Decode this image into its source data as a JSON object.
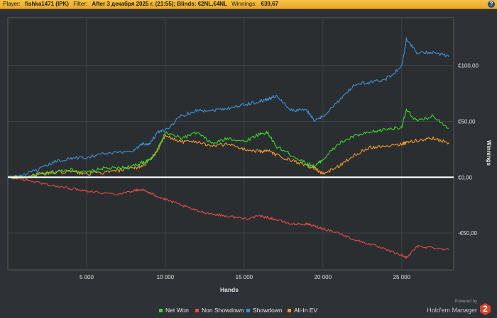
{
  "header": {
    "player_label": "Player:",
    "player_value": "fishka1471 (IPK)",
    "filter_label": "Filter:",
    "filter_value": "After 3 декабря 2025 г. (21:55); Blinds: €2NL,€4NL",
    "winnings_label": "Winnings:",
    "winnings_value": "€39,67",
    "help_glyph": "?"
  },
  "branding": {
    "powered_by": "Powered by",
    "name": "Hold'em Manager",
    "version": "2"
  },
  "chart_data": {
    "type": "line",
    "xlabel": "Hands",
    "ylabel": "Winnings",
    "xlim": [
      0,
      28300
    ],
    "ylim": [
      -83,
      143
    ],
    "x_ticks": [
      5000,
      10000,
      15000,
      20000,
      25000
    ],
    "x_tick_labels": [
      "5 000",
      "10 000",
      "15 000",
      "20 000",
      "25 000"
    ],
    "y_ticks": [
      100,
      50,
      0,
      -50
    ],
    "y_tick_labels": [
      "€100,00",
      "€50,00",
      "€0,00",
      "-€50,00"
    ],
    "grid": true,
    "legend_position": "bottom-right",
    "x": [
      0,
      1000,
      2000,
      3000,
      4000,
      5000,
      6000,
      7000,
      8000,
      8500,
      9000,
      9500,
      10000,
      11000,
      12000,
      13000,
      14000,
      15000,
      16000,
      16500,
      17000,
      18000,
      19000,
      19500,
      20000,
      21000,
      22000,
      23000,
      24000,
      25000,
      25300,
      26000,
      27000,
      28000
    ],
    "series": [
      {
        "name": "Net Won",
        "color": "#35d829",
        "values": [
          0,
          0,
          2,
          5,
          7,
          4,
          8,
          8,
          10,
          13,
          15,
          24,
          40,
          35,
          40,
          30,
          35,
          32,
          39,
          40,
          28,
          20,
          12,
          10,
          16,
          30,
          37,
          40,
          43,
          45,
          60,
          50,
          55,
          44
        ]
      },
      {
        "name": "Non Showdown",
        "color": "#e24a48",
        "values": [
          0,
          -2,
          -5,
          -8,
          -10,
          -12,
          -14,
          -15,
          -12,
          -11,
          -14,
          -17,
          -20,
          -25,
          -30,
          -33,
          -35,
          -37,
          -35,
          -36,
          -38,
          -42,
          -42,
          -44,
          -46,
          -50,
          -56,
          -60,
          -65,
          -70,
          -72,
          -62,
          -63,
          -65
        ]
      },
      {
        "name": "Showdown",
        "color": "#3c8fd6",
        "values": [
          0,
          2,
          7,
          14,
          17,
          18,
          21,
          22,
          24,
          30,
          30,
          40,
          42,
          55,
          60,
          60,
          62,
          65,
          68,
          70,
          73,
          60,
          60,
          50,
          55,
          68,
          83,
          85,
          88,
          99,
          124,
          111,
          112,
          108
        ]
      },
      {
        "name": "All-In EV",
        "color": "#f09a2c",
        "values": [
          0,
          0,
          3,
          4,
          5,
          3,
          4,
          6,
          8,
          10,
          15,
          25,
          37,
          32,
          32,
          28,
          30,
          25,
          23,
          24,
          20,
          15,
          10,
          8,
          3,
          10,
          20,
          27,
          28,
          30,
          31,
          33,
          35,
          31
        ]
      }
    ]
  }
}
